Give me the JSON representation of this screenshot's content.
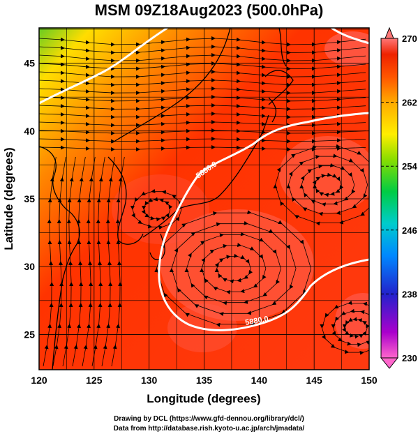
{
  "title": "MSM 09Z18Aug2023 (500.0hPa)",
  "x_axis": {
    "label": "Longitude (degrees)",
    "ticks": [
      "120",
      "125",
      "130",
      "135",
      "140",
      "145",
      "150"
    ],
    "range": [
      120,
      150
    ]
  },
  "y_axis": {
    "label": "Latitude  (degrees)",
    "ticks": [
      "25",
      "30",
      "35",
      "40",
      "45"
    ],
    "range": [
      22.4,
      47.6
    ]
  },
  "colorbar": {
    "ticks": [
      "270",
      "262",
      "254",
      "246",
      "238",
      "230"
    ],
    "range": [
      230,
      270
    ],
    "colors": [
      "#ff66cc",
      "#aa00cc",
      "#2222cc",
      "#0088ff",
      "#00cccc",
      "#00cc44",
      "#88dd00",
      "#ffee00",
      "#ffaa00",
      "#ff5500",
      "#ee2200",
      "#ff7777"
    ]
  },
  "contours": [
    {
      "label": "5880.0"
    },
    {
      "label": "5880.0"
    }
  ],
  "credits": [
    "Drawing by DCL (https://www.gfd-dennou.org/library/dcl/)",
    "Data from http://database.rish.kyoto-u.ac.jp/arch/jmadata/"
  ]
}
